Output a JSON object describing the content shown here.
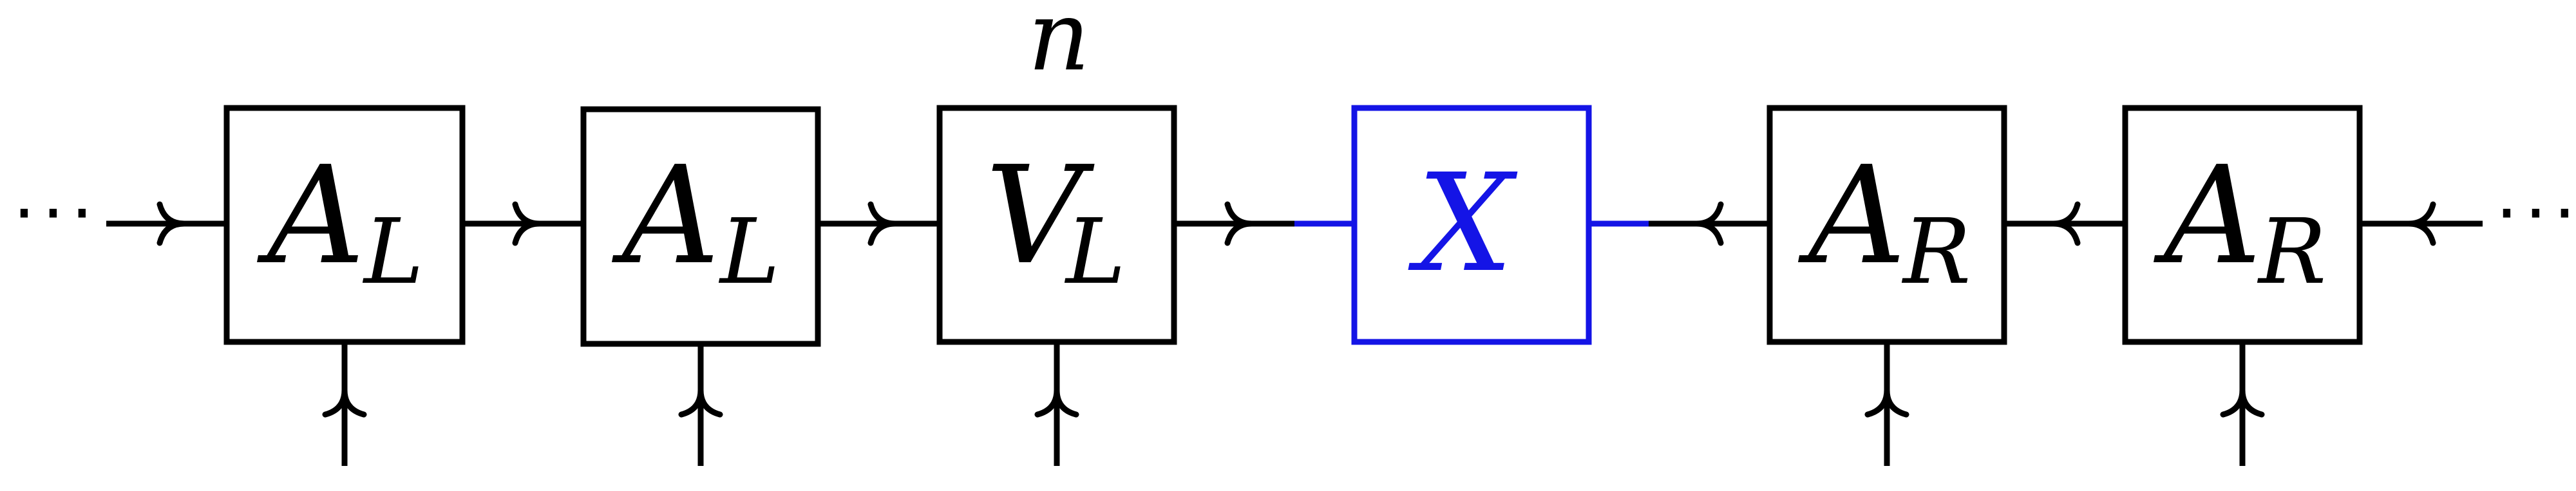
{
  "diagram": {
    "left_ellipsis": "···",
    "right_ellipsis": "···",
    "index_label": "n",
    "tensors": [
      {
        "main": "A",
        "sub": "L",
        "color": "#000000"
      },
      {
        "main": "A",
        "sub": "L",
        "color": "#000000"
      },
      {
        "main": "V",
        "sub": "L",
        "color": "#000000"
      },
      {
        "main": "X",
        "sub": "",
        "color": "#1414e6"
      },
      {
        "main": "A",
        "sub": "R",
        "color": "#000000"
      },
      {
        "main": "A",
        "sub": "R",
        "color": "#000000"
      }
    ]
  }
}
